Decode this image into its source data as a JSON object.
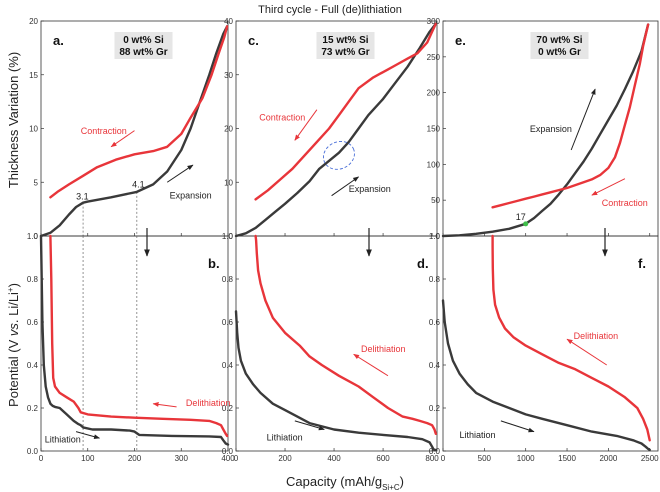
{
  "figure": {
    "title": "Third cycle - Full (de)lithiation",
    "ylabel_top": "Thickness Variation (%)",
    "ylabel_bottom_parts": [
      "Potential (V ",
      "vs",
      ". Li/Li",
      "+",
      ")"
    ],
    "xlabel_parts": [
      "Capacity (mAh/g",
      "Si+C",
      ")"
    ]
  },
  "chart_data": [
    {
      "id": "a",
      "type": "line",
      "letter": "a.",
      "composition": [
        "0 wt% Si",
        "88 wt% Gr"
      ],
      "xlim": [
        0,
        400
      ],
      "ylim": [
        0,
        20
      ],
      "xticks": [
        0,
        100,
        200,
        300,
        400
      ],
      "yticks": [
        0,
        5,
        10,
        15,
        20
      ],
      "colors": {
        "expansion": "#3a3a3a",
        "contraction": "#e8353a"
      },
      "series": [
        {
          "role": "expansion",
          "x": [
            0,
            20,
            40,
            60,
            75,
            90,
            100,
            150,
            205,
            240,
            270,
            300,
            320,
            340,
            360,
            375,
            390,
            398
          ],
          "y": [
            0,
            0.3,
            1.0,
            2.0,
            2.7,
            3.1,
            3.2,
            3.6,
            4.1,
            4.8,
            6.0,
            8.0,
            10.0,
            12.5,
            15.0,
            17.0,
            18.8,
            19.5
          ]
        },
        {
          "role": "contraction",
          "x": [
            398,
            392,
            380,
            365,
            345,
            320,
            300,
            270,
            240,
            200,
            160,
            120,
            90,
            60,
            35,
            20
          ],
          "y": [
            19.5,
            18.5,
            17.0,
            15.0,
            12.8,
            11.0,
            9.5,
            8.3,
            7.9,
            7.6,
            7.1,
            6.4,
            5.6,
            4.8,
            4.1,
            3.6
          ]
        }
      ],
      "annotations": [
        {
          "text": "3.1",
          "x": 75,
          "y": 3.4,
          "color": "#222222"
        },
        {
          "text": "4.1",
          "x": 195,
          "y": 4.5,
          "color": "#222222"
        },
        {
          "text": "Contraction",
          "x": 85,
          "y": 9.5,
          "color": "#e8353a"
        },
        {
          "text": "Expansion",
          "x": 275,
          "y": 3.5,
          "color": "#222222"
        }
      ],
      "arrows": [
        {
          "from": [
            200,
            9.8
          ],
          "to": [
            150,
            8.3
          ],
          "color": "#e8353a"
        },
        {
          "from": [
            270,
            5.0
          ],
          "to": [
            325,
            6.6
          ],
          "color": "#222222"
        }
      ],
      "guides_x": [
        90,
        205
      ]
    },
    {
      "id": "b",
      "type": "line",
      "letter": "b.",
      "xlim": [
        0,
        400
      ],
      "ylim": [
        0,
        1.0
      ],
      "xticks": [
        0,
        100,
        200,
        300,
        400
      ],
      "yticks": [
        0.0,
        0.2,
        0.4,
        0.6,
        0.8,
        1.0
      ],
      "colors": {
        "lithiation": "#3a3a3a",
        "delithiation": "#e8353a"
      },
      "series": [
        {
          "role": "lithiation",
          "x": [
            0,
            3,
            6,
            10,
            15,
            20,
            25,
            30,
            40,
            55,
            70,
            80,
            85,
            90,
            110,
            150,
            190,
            200,
            210,
            280,
            360,
            385,
            390,
            395,
            400
          ],
          "y": [
            1.0,
            0.6,
            0.4,
            0.3,
            0.25,
            0.22,
            0.21,
            0.205,
            0.2,
            0.17,
            0.14,
            0.125,
            0.12,
            0.11,
            0.1,
            0.1,
            0.095,
            0.09,
            0.075,
            0.07,
            0.068,
            0.065,
            0.05,
            0.035,
            0.03
          ]
        },
        {
          "role": "delithiation",
          "x": [
            20,
            22,
            24,
            26,
            30,
            40,
            55,
            70,
            80,
            85,
            100,
            150,
            200,
            260,
            320,
            360,
            375,
            385,
            390,
            395,
            398
          ],
          "y": [
            1.0,
            0.8,
            0.5,
            0.34,
            0.3,
            0.27,
            0.25,
            0.23,
            0.2,
            0.18,
            0.17,
            0.16,
            0.155,
            0.15,
            0.145,
            0.14,
            0.13,
            0.12,
            0.1,
            0.08,
            0.07
          ]
        }
      ],
      "annotations": [
        {
          "text": "Delithiation",
          "x": 310,
          "y": 0.21,
          "color": "#e8353a"
        },
        {
          "text": "Lithiation",
          "x": 8,
          "y": 0.04,
          "color": "#222222"
        }
      ],
      "arrows": [
        {
          "from": [
            290,
            0.205
          ],
          "to": [
            240,
            0.22
          ],
          "color": "#e8353a"
        },
        {
          "from": [
            75,
            0.09
          ],
          "to": [
            125,
            0.06
          ],
          "color": "#222222"
        }
      ],
      "guides_x": [
        90,
        205
      ]
    },
    {
      "id": "c",
      "type": "line",
      "letter": "c.",
      "composition": [
        "15 wt% Si",
        "73 wt% Gr"
      ],
      "xlim": [
        0,
        820
      ],
      "ylim": [
        0,
        40
      ],
      "xticks": [
        0,
        200,
        400,
        600,
        800
      ],
      "yticks": [
        0,
        10,
        20,
        30,
        40
      ],
      "colors": {
        "expansion": "#3a3a3a",
        "contraction": "#e8353a"
      },
      "series": [
        {
          "role": "expansion",
          "x": [
            0,
            40,
            80,
            120,
            160,
            200,
            250,
            300,
            340,
            380,
            420,
            460,
            500,
            540,
            600,
            650,
            700,
            750,
            790,
            815
          ],
          "y": [
            0,
            0.5,
            1.5,
            3.0,
            4.5,
            6.0,
            8.0,
            10.2,
            12.5,
            14.0,
            15.5,
            17.5,
            20.0,
            22.5,
            25.5,
            28.5,
            31.5,
            35.0,
            38.0,
            39.5
          ]
        },
        {
          "role": "contraction",
          "x": [
            815,
            800,
            780,
            740,
            700,
            660,
            620,
            560,
            500,
            460,
            420,
            380,
            330,
            280,
            230,
            180,
            130,
            80
          ],
          "y": [
            39.5,
            38.0,
            36.0,
            34.0,
            33.0,
            32.0,
            31.0,
            29.5,
            27.5,
            25.0,
            22.5,
            20.0,
            17.5,
            15.0,
            12.5,
            10.5,
            8.5,
            6.8
          ]
        }
      ],
      "annotations": [
        {
          "text": "Contraction",
          "x": 95,
          "y": 21.5,
          "color": "#e8353a"
        },
        {
          "text": "Expansion",
          "x": 460,
          "y": 8.2,
          "color": "#222222"
        }
      ],
      "arrows": [
        {
          "from": [
            330,
            23.5
          ],
          "to": [
            240,
            17.8
          ],
          "color": "#e8353a"
        },
        {
          "from": [
            390,
            7.5
          ],
          "to": [
            500,
            11.0
          ],
          "color": "#222222"
        }
      ],
      "highlight": {
        "cx": 420,
        "cy": 15,
        "rx": 65,
        "ry": 2.5,
        "color": "#4a6fd8"
      }
    },
    {
      "id": "d",
      "type": "line",
      "letter": "d.",
      "xlim": [
        0,
        820
      ],
      "ylim": [
        0,
        1.0
      ],
      "xticks": [
        0,
        200,
        400,
        600,
        800
      ],
      "yticks": [
        0.0,
        0.2,
        0.4,
        0.6,
        0.8,
        1.0
      ],
      "colors": {
        "lithiation": "#3a3a3a",
        "delithiation": "#e8353a"
      },
      "series": [
        {
          "role": "lithiation",
          "x": [
            0,
            5,
            10,
            20,
            40,
            70,
            100,
            150,
            200,
            250,
            300,
            400,
            500,
            600,
            700,
            760,
            790,
            800,
            805,
            810,
            815
          ],
          "y": [
            0.65,
            0.55,
            0.48,
            0.42,
            0.36,
            0.31,
            0.27,
            0.22,
            0.19,
            0.16,
            0.13,
            0.1,
            0.085,
            0.075,
            0.065,
            0.055,
            0.04,
            0.02,
            0.01,
            0.005,
            0.005
          ]
        },
        {
          "role": "delithiation",
          "x": [
            80,
            82,
            85,
            90,
            100,
            120,
            150,
            200,
            260,
            300,
            350,
            420,
            500,
            560,
            620,
            680,
            720,
            750,
            780,
            800,
            810,
            815
          ],
          "y": [
            1.0,
            0.98,
            0.92,
            0.84,
            0.78,
            0.7,
            0.62,
            0.55,
            0.49,
            0.44,
            0.4,
            0.35,
            0.3,
            0.25,
            0.2,
            0.16,
            0.15,
            0.14,
            0.13,
            0.12,
            0.1,
            0.08
          ]
        }
      ],
      "annotations": [
        {
          "text": "Delithiation",
          "x": 510,
          "y": 0.46,
          "color": "#e8353a"
        },
        {
          "text": "Lithiation",
          "x": 125,
          "y": 0.05,
          "color": "#222222"
        }
      ],
      "arrows": [
        {
          "from": [
            620,
            0.35
          ],
          "to": [
            480,
            0.45
          ],
          "color": "#e8353a"
        },
        {
          "from": [
            240,
            0.14
          ],
          "to": [
            360,
            0.1
          ],
          "color": "#222222"
        }
      ]
    },
    {
      "id": "e",
      "type": "line",
      "letter": "e.",
      "composition": [
        "70 wt% Si",
        "0 wt% Gr"
      ],
      "xlim": [
        0,
        2600
      ],
      "ylim": [
        0,
        300
      ],
      "xticks": [
        0,
        500,
        1000,
        1500,
        2000,
        2500
      ],
      "yticks": [
        0,
        50,
        100,
        150,
        200,
        250,
        300
      ],
      "colors": {
        "expansion": "#3a3a3a",
        "contraction": "#e8353a"
      },
      "series": [
        {
          "role": "expansion",
          "x": [
            0,
            200,
            400,
            600,
            800,
            1000,
            1100,
            1200,
            1300,
            1400,
            1500,
            1600,
            1700,
            1800,
            1900,
            2000,
            2100,
            2200,
            2300,
            2400,
            2480
          ],
          "y": [
            0,
            1,
            3,
            6,
            10,
            17,
            25,
            35,
            45,
            58,
            72,
            88,
            104,
            122,
            142,
            162,
            182,
            205,
            230,
            258,
            295
          ]
        },
        {
          "role": "contraction",
          "x": [
            2480,
            2460,
            2420,
            2380,
            2320,
            2260,
            2200,
            2140,
            2080,
            2000,
            1900,
            1800,
            1700,
            1600,
            1500,
            1400,
            1300,
            1200,
            1100,
            1000,
            900,
            800,
            700,
            600
          ],
          "y": [
            295,
            285,
            265,
            240,
            210,
            180,
            155,
            130,
            110,
            95,
            85,
            79,
            75,
            71,
            67,
            64,
            61,
            58,
            55,
            52,
            49,
            46,
            43,
            40
          ]
        }
      ],
      "annotations": [
        {
          "text": "17",
          "x": 880,
          "y": 22,
          "color": "#222222"
        },
        {
          "text": "Expansion",
          "x": 1050,
          "y": 145,
          "color": "#222222"
        },
        {
          "text": "Contraction",
          "x": 1920,
          "y": 42,
          "color": "#e8353a"
        }
      ],
      "arrows": [
        {
          "from": [
            1550,
            120
          ],
          "to": [
            1840,
            205
          ],
          "color": "#222222"
        },
        {
          "from": [
            2200,
            80
          ],
          "to": [
            1800,
            57
          ],
          "color": "#e8353a"
        }
      ],
      "markers": [
        {
          "x": 1000,
          "y": 17,
          "color": "#3fbf4a"
        }
      ]
    },
    {
      "id": "f",
      "type": "line",
      "letter": "f.",
      "xlim": [
        0,
        2600
      ],
      "ylim": [
        0,
        1.0
      ],
      "xticks": [
        0,
        500,
        1000,
        1500,
        2000,
        2500
      ],
      "yticks": [
        0.0,
        0.2,
        0.4,
        0.6,
        0.8,
        1.0
      ],
      "colors": {
        "lithiation": "#3a3a3a",
        "delithiation": "#e8353a"
      },
      "series": [
        {
          "role": "lithiation",
          "x": [
            0,
            20,
            60,
            120,
            200,
            300,
            400,
            600,
            800,
            1000,
            1200,
            1500,
            1800,
            2100,
            2300,
            2400,
            2450,
            2480,
            2500
          ],
          "y": [
            0.7,
            0.6,
            0.5,
            0.42,
            0.36,
            0.31,
            0.27,
            0.23,
            0.2,
            0.17,
            0.15,
            0.12,
            0.09,
            0.07,
            0.05,
            0.035,
            0.02,
            0.01,
            0.005
          ]
        },
        {
          "role": "delithiation",
          "x": [
            600,
            600,
            602,
            610,
            630,
            680,
            750,
            850,
            1000,
            1200,
            1400,
            1600,
            1800,
            2000,
            2200,
            2350,
            2420,
            2470,
            2500
          ],
          "y": [
            1.0,
            0.95,
            0.85,
            0.75,
            0.68,
            0.62,
            0.57,
            0.53,
            0.49,
            0.45,
            0.41,
            0.38,
            0.34,
            0.3,
            0.25,
            0.2,
            0.15,
            0.1,
            0.05
          ]
        }
      ],
      "annotations": [
        {
          "text": "Delithiation",
          "x": 1580,
          "y": 0.52,
          "color": "#e8353a"
        },
        {
          "text": "Lithiation",
          "x": 200,
          "y": 0.06,
          "color": "#222222"
        }
      ],
      "arrows": [
        {
          "from": [
            1980,
            0.4
          ],
          "to": [
            1500,
            0.52
          ],
          "color": "#e8353a"
        },
        {
          "from": [
            700,
            0.14
          ],
          "to": [
            1100,
            0.09
          ],
          "color": "#222222"
        }
      ]
    }
  ]
}
